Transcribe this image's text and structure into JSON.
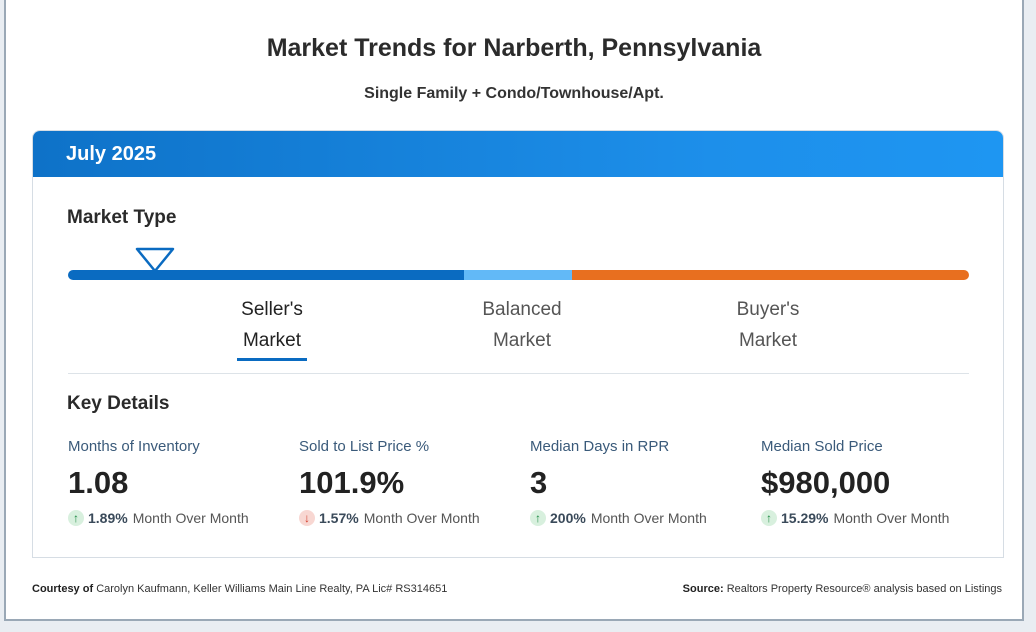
{
  "page": {
    "title": "Market Trends for Narberth, Pennsylvania",
    "subtitle": "Single Family + Condo/Townhouse/Apt."
  },
  "card": {
    "period": "July 2025",
    "market_type_title": "Market Type",
    "market_labels": {
      "seller_line1": "Seller's",
      "seller_line2": "Market",
      "balanced_line1": "Balanced",
      "balanced_line2": "Market",
      "buyer_line1": "Buyer's",
      "buyer_line2": "Market"
    },
    "active_market": "Seller's Market",
    "colors": {
      "seller": "#0a6bc1",
      "balanced": "#62b9f7",
      "buyer": "#e86f1f",
      "header": "#1d8fea"
    },
    "key_details_title": "Key Details",
    "details": [
      {
        "label": "Months of Inventory",
        "value": "1.08",
        "direction": "up",
        "pct": "1.89%",
        "suffix": "Month Over Month"
      },
      {
        "label": "Sold to List Price %",
        "value": "101.9%",
        "direction": "down",
        "pct": "1.57%",
        "suffix": "Month Over Month"
      },
      {
        "label": "Median Days in RPR",
        "value": "3",
        "direction": "up",
        "pct": "200%",
        "suffix": "Month Over Month"
      },
      {
        "label": "Median Sold Price",
        "value": "$980,000",
        "direction": "up",
        "pct": "15.29%",
        "suffix": "Month Over Month"
      }
    ]
  },
  "footer": {
    "courtesy_label": "Courtesy of",
    "courtesy_text": "Carolyn Kaufmann, Keller Williams Main Line Realty, PA Lic# RS314651",
    "source_label": "Source:",
    "source_text": "Realtors Property Resource® analysis based on Listings"
  }
}
